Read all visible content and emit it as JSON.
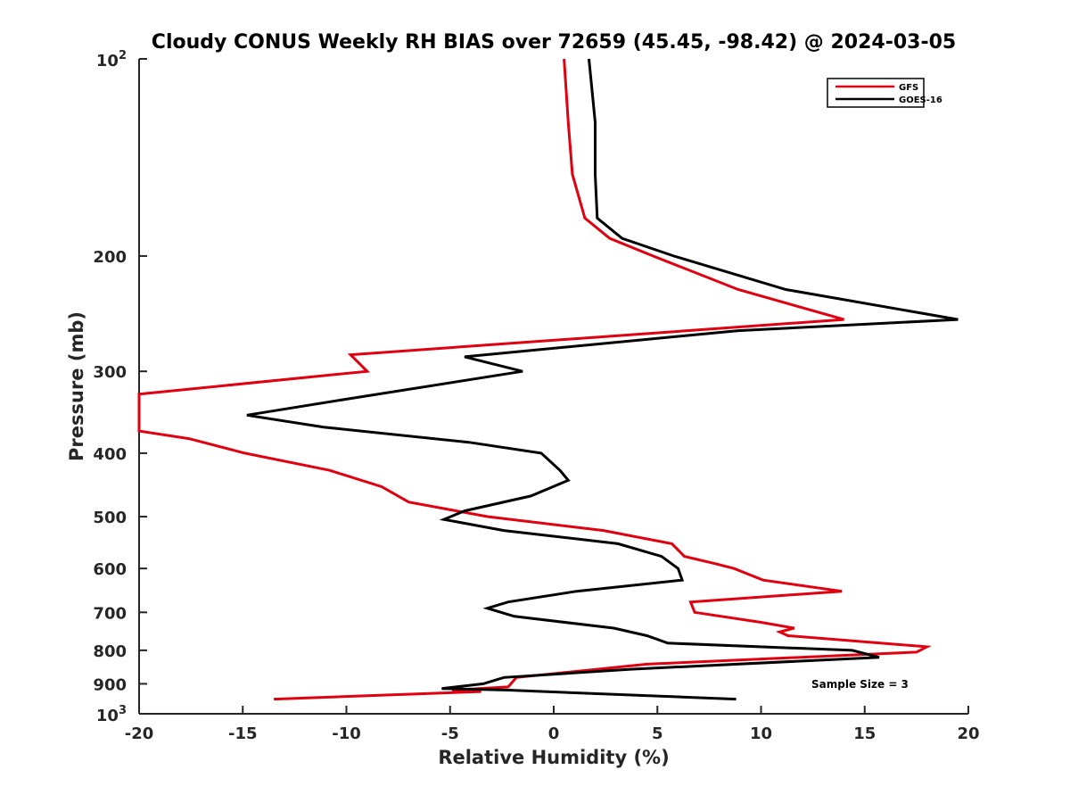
{
  "chart_data": {
    "type": "line",
    "title": "Cloudy CONUS Weekly RH BIAS over 72659 (45.45, -98.42) @ 2024-03-05",
    "xlabel": "Relative Humidity (%)",
    "ylabel": "Pressure (mb)",
    "xlim": [
      -20,
      20
    ],
    "ylim": [
      100,
      1000
    ],
    "y_scale": "log",
    "y_reversed": true,
    "grid": false,
    "legend_position": "top-right",
    "x_ticks": [
      "-20",
      "-15",
      "-10",
      "-5",
      "0",
      "5",
      "10",
      "15",
      "20"
    ],
    "y_ticks": [
      {
        "value": 100,
        "base": "10",
        "exp": "2"
      },
      {
        "value": 200,
        "label": "200"
      },
      {
        "value": 300,
        "label": "300"
      },
      {
        "value": 400,
        "label": "400"
      },
      {
        "value": 500,
        "label": "500"
      },
      {
        "value": 600,
        "label": "600"
      },
      {
        "value": 700,
        "label": "700"
      },
      {
        "value": 800,
        "label": "800"
      },
      {
        "value": 900,
        "label": "900"
      },
      {
        "value": 1000,
        "base": "10",
        "exp": "3"
      }
    ],
    "annotation": "Sample Size = 3",
    "series": [
      {
        "name": "GFS",
        "color": "#e0000f",
        "points": [
          [
            0.5,
            100
          ],
          [
            0.7,
            125
          ],
          [
            0.9,
            150
          ],
          [
            1.5,
            175
          ],
          [
            2.7,
            188
          ],
          [
            4.8,
            200
          ],
          [
            8.9,
            225
          ],
          [
            14.0,
            250
          ],
          [
            -9.8,
            283
          ],
          [
            -9.0,
            300
          ],
          [
            -20.5,
            325
          ],
          [
            -20.5,
            370
          ],
          [
            -17.6,
            380
          ],
          [
            -14.9,
            400
          ],
          [
            -10.8,
            425
          ],
          [
            -8.3,
            450
          ],
          [
            -7.0,
            475
          ],
          [
            -3.2,
            500
          ],
          [
            2.4,
            525
          ],
          [
            5.7,
            550
          ],
          [
            6.3,
            575
          ],
          [
            7.8,
            590
          ],
          [
            8.7,
            600
          ],
          [
            10.1,
            625
          ],
          [
            13.9,
            650
          ],
          [
            6.6,
            675
          ],
          [
            6.8,
            700
          ],
          [
            10.0,
            725
          ],
          [
            11.6,
            740
          ],
          [
            10.9,
            750
          ],
          [
            11.3,
            760
          ],
          [
            18.0,
            790
          ],
          [
            17.5,
            805
          ],
          [
            4.5,
            840
          ],
          [
            -1.8,
            880
          ],
          [
            -2.2,
            910
          ],
          [
            -4.9,
            920
          ],
          [
            -3.5,
            925
          ],
          [
            -13.5,
            950
          ]
        ]
      },
      {
        "name": "GOES-16",
        "color": "#000000",
        "points": [
          [
            1.7,
            100
          ],
          [
            2.0,
            125
          ],
          [
            2.0,
            150
          ],
          [
            2.1,
            175
          ],
          [
            3.3,
            188
          ],
          [
            5.8,
            200
          ],
          [
            11.2,
            225
          ],
          [
            19.5,
            250
          ],
          [
            8.9,
            260
          ],
          [
            -4.3,
            285
          ],
          [
            -1.5,
            300
          ],
          [
            -9.8,
            330
          ],
          [
            -14.8,
            350
          ],
          [
            -11.1,
            365
          ],
          [
            -4.1,
            385
          ],
          [
            -0.6,
            400
          ],
          [
            0.3,
            425
          ],
          [
            0.7,
            440
          ],
          [
            -1.1,
            465
          ],
          [
            -4.3,
            490
          ],
          [
            -5.3,
            505
          ],
          [
            -2.4,
            525
          ],
          [
            3.1,
            550
          ],
          [
            5.2,
            575
          ],
          [
            6.0,
            600
          ],
          [
            6.2,
            625
          ],
          [
            1.1,
            650
          ],
          [
            -2.2,
            675
          ],
          [
            -3.2,
            690
          ],
          [
            -1.9,
            710
          ],
          [
            2.9,
            740
          ],
          [
            4.5,
            760
          ],
          [
            5.5,
            780
          ],
          [
            14.4,
            800
          ],
          [
            15.7,
            820
          ],
          [
            3.7,
            855
          ],
          [
            -2.4,
            880
          ],
          [
            -3.4,
            900
          ],
          [
            -5.4,
            915
          ],
          [
            -2.3,
            920
          ],
          [
            8.8,
            950
          ]
        ]
      }
    ]
  }
}
